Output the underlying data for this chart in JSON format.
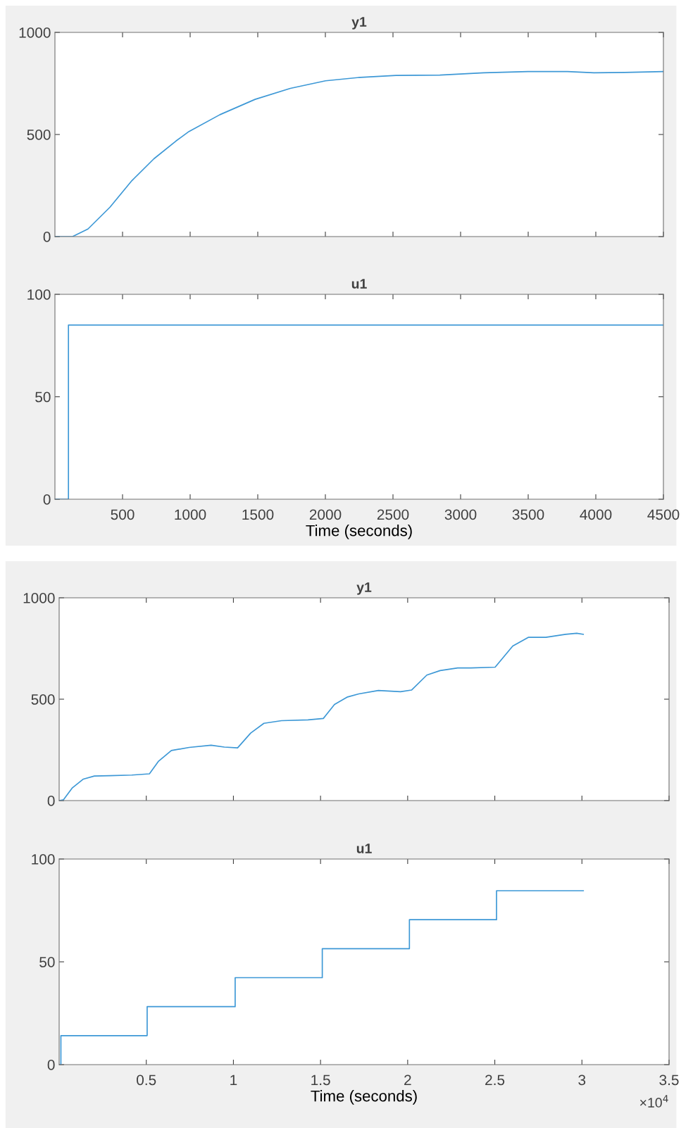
{
  "chart_data": [
    {
      "type": "line",
      "title": "y1",
      "xlim": [
        0,
        4500
      ],
      "ylim": [
        0,
        1000
      ],
      "xticks": [
        500,
        1000,
        1500,
        2000,
        2500,
        3000,
        3500,
        4000,
        4500
      ],
      "yticks": [
        0,
        500,
        1000
      ],
      "tick_labels": "y",
      "series": [
        {
          "color": "#3d98d6",
          "x": [
            0,
            130,
            244,
            407,
            569,
            732,
            895,
            992,
            1220,
            1480,
            1741,
            2001,
            2261,
            2522,
            2847,
            3172,
            3498,
            3791,
            3986,
            4214,
            4500
          ],
          "values": [
            0,
            0,
            37,
            144,
            274,
            381,
            468,
            515,
            597,
            672,
            726,
            763,
            780,
            789,
            791,
            802,
            808,
            808,
            802,
            804,
            808
          ]
        }
      ]
    },
    {
      "type": "step",
      "title": "u1",
      "xlabel": "Time (seconds)",
      "xlim": [
        0,
        4500
      ],
      "ylim": [
        0,
        100
      ],
      "xticks": [
        500,
        1000,
        1500,
        2000,
        2500,
        3000,
        3500,
        4000,
        4500
      ],
      "yticks": [
        0,
        50,
        100
      ],
      "series": [
        {
          "color": "#3d98d6",
          "x": [
            0,
            100,
            4500
          ],
          "values": [
            0,
            85,
            85
          ]
        }
      ]
    },
    {
      "type": "line",
      "title": "y1",
      "xlim": [
        0,
        3.5
      ],
      "ylim": [
        0,
        1000
      ],
      "xticks": [
        0.5,
        1,
        1.5,
        2,
        2.5,
        3,
        3.5
      ],
      "yticks": [
        0,
        500,
        1000
      ],
      "tick_labels": "y",
      "series": [
        {
          "color": "#3d98d6",
          "x": [
            0,
            0.025,
            0.076,
            0.139,
            0.202,
            0.291,
            0.417,
            0.518,
            0.569,
            0.644,
            0.746,
            0.872,
            0.948,
            1.024,
            1.099,
            1.175,
            1.276,
            1.428,
            1.516,
            1.58,
            1.655,
            1.719,
            1.832,
            1.959,
            2.022,
            2.11,
            2.186,
            2.287,
            2.363,
            2.502,
            2.603,
            2.692,
            2.793,
            2.906,
            2.97,
            3.008
          ],
          "values": [
            0,
            4,
            63,
            106,
            121,
            123,
            126,
            132,
            193,
            247,
            262,
            273,
            264,
            260,
            333,
            381,
            394,
            398,
            405,
            474,
            511,
            526,
            543,
            537,
            545,
            619,
            641,
            654,
            654,
            658,
            762,
            805,
            805,
            820,
            825,
            820
          ]
        }
      ]
    },
    {
      "type": "step",
      "title": "u1",
      "xlabel": "Time (seconds)",
      "xlim": [
        0,
        3.5
      ],
      "ylim": [
        0,
        100
      ],
      "xticks": [
        0.5,
        1,
        1.5,
        2,
        2.5,
        3,
        3.5
      ],
      "yticks": [
        0,
        50,
        100
      ],
      "annotations": [
        "×10$^{4}$"
      ],
      "series": [
        {
          "color": "#3d98d6",
          "x": [
            0,
            0.01,
            0.505,
            1.01,
            1.51,
            2.01,
            2.51,
            3.008
          ],
          "values": [
            0,
            14.1,
            28.2,
            42.3,
            56.4,
            70.5,
            84.6,
            84.6
          ]
        }
      ]
    }
  ]
}
